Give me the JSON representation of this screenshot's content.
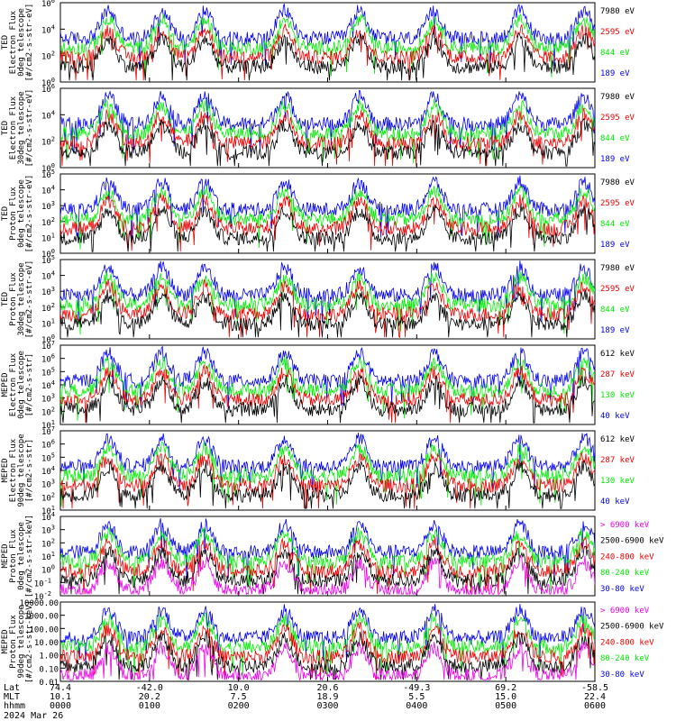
{
  "colors": {
    "black": "#000000",
    "red": "#ee0000",
    "green": "#00ee00",
    "blue": "#0000ee",
    "magenta": "#ee00ee"
  },
  "chart_data": [
    {
      "type": "line",
      "ylabel": [
        "TED",
        "Electron Flux",
        "0deg telescope",
        "[#/cm2-s-str-eV]"
      ],
      "ylim": [
        1,
        1000000
      ],
      "scale": "log",
      "yticks": [
        "10^0",
        "10^2",
        "10^4",
        "10^6"
      ],
      "series": [
        {
          "name": "7980 eV",
          "color": "black"
        },
        {
          "name": "2595 eV",
          "color": "red"
        },
        {
          "name": "844 eV",
          "color": "green"
        },
        {
          "name": "189 eV",
          "color": "blue"
        }
      ]
    },
    {
      "type": "line",
      "ylabel": [
        "TED",
        "Electron Flux",
        "30deg telescope",
        "[#/cm2-s-str-eV]"
      ],
      "ylim": [
        1,
        1000000
      ],
      "scale": "log",
      "yticks": [
        "10^0",
        "10^2",
        "10^4",
        "10^6"
      ],
      "series": [
        {
          "name": "7980 eV",
          "color": "black"
        },
        {
          "name": "2595 eV",
          "color": "red"
        },
        {
          "name": "844 eV",
          "color": "green"
        },
        {
          "name": "189 eV",
          "color": "blue"
        }
      ]
    },
    {
      "type": "line",
      "ylabel": [
        "TED",
        "Proton Flux",
        "0deg telescope",
        "[#/cm2-s-str-eV]"
      ],
      "ylim": [
        1,
        100000
      ],
      "scale": "log",
      "yticks": [
        "10^0",
        "10^1",
        "10^2",
        "10^3",
        "10^4",
        "10^5"
      ],
      "series": [
        {
          "name": "7980 eV",
          "color": "black"
        },
        {
          "name": "2595 eV",
          "color": "red"
        },
        {
          "name": "844 eV",
          "color": "green"
        },
        {
          "name": "189 eV",
          "color": "blue"
        }
      ]
    },
    {
      "type": "line",
      "ylabel": [
        "TED",
        "Proton Flux",
        "30deg telescope",
        "[#/cm2-s-str-eV]"
      ],
      "ylim": [
        1,
        100000
      ],
      "scale": "log",
      "yticks": [
        "10^0",
        "10^1",
        "10^2",
        "10^3",
        "10^4",
        "10^5"
      ],
      "series": [
        {
          "name": "7980 eV",
          "color": "black"
        },
        {
          "name": "2595 eV",
          "color": "red"
        },
        {
          "name": "844 eV",
          "color": "green"
        },
        {
          "name": "189 eV",
          "color": "blue"
        }
      ]
    },
    {
      "type": "line",
      "ylabel": [
        "MEPED",
        "Electron Flux",
        "0deg telescope",
        "[#/cm2-s-str]"
      ],
      "ylim": [
        10,
        10000000
      ],
      "scale": "log",
      "yticks": [
        "10^1",
        "10^2",
        "10^3",
        "10^4",
        "10^5",
        "10^6",
        "10^7"
      ],
      "series": [
        {
          "name": "612 keV",
          "color": "black"
        },
        {
          "name": "287 keV",
          "color": "red"
        },
        {
          "name": "130 keV",
          "color": "green"
        },
        {
          "name": "40 keV",
          "color": "blue"
        }
      ]
    },
    {
      "type": "line",
      "ylabel": [
        "MEPED",
        "Electron Flux",
        "90deg telescope",
        "[#/cm2-s-str]"
      ],
      "ylim": [
        10,
        10000000
      ],
      "scale": "log",
      "yticks": [
        "10^1",
        "10^2",
        "10^3",
        "10^4",
        "10^5",
        "10^6",
        "10^7"
      ],
      "series": [
        {
          "name": "612 keV",
          "color": "black"
        },
        {
          "name": "287 keV",
          "color": "red"
        },
        {
          "name": "130 keV",
          "color": "green"
        },
        {
          "name": "40 keV",
          "color": "blue"
        }
      ]
    },
    {
      "type": "line",
      "ylabel": [
        "MEPED",
        "Proton Flux",
        "0deg telescope",
        "[#/cm2-s-str-keV]"
      ],
      "ylim": [
        0.01,
        10000
      ],
      "scale": "log",
      "yticks": [
        "10^-2",
        "10^-1",
        "10^0",
        "10^1",
        "10^2",
        "10^3",
        "10^4"
      ],
      "series": [
        {
          "name": "> 6900 keV",
          "color": "magenta"
        },
        {
          "name": "2500-6900 keV",
          "color": "black"
        },
        {
          "name": "240-800 keV",
          "color": "red"
        },
        {
          "name": "80-240 keV",
          "color": "green"
        },
        {
          "name": "30-80 keV",
          "color": "blue"
        }
      ]
    },
    {
      "type": "line",
      "ylabel": [
        "MEPED",
        "Proton Flux",
        "90deg telescope",
        "[#/cm2-s-str-keV]"
      ],
      "ylim": [
        0.01,
        10000
      ],
      "scale": "log",
      "yticks": [
        "0.01",
        "0.10",
        "1.00",
        "10.00",
        "100.00",
        "1000.00",
        "10000.00"
      ],
      "series": [
        {
          "name": "> 6900 keV",
          "color": "magenta"
        },
        {
          "name": "2500-6900 keV",
          "color": "black"
        },
        {
          "name": "240-800 keV",
          "color": "red"
        },
        {
          "name": "80-240 keV",
          "color": "green"
        },
        {
          "name": "30-80 keV",
          "color": "blue"
        }
      ]
    }
  ],
  "xaxis": {
    "row_labels": [
      "Lat",
      "MLT",
      "hhmm"
    ],
    "ticks": [
      {
        "lat": "74.4",
        "mlt": "10.1",
        "hhmm": "0000"
      },
      {
        "lat": "-42.0",
        "mlt": "20.2",
        "hhmm": "0100"
      },
      {
        "lat": "10.0",
        "mlt": "7.5",
        "hhmm": "0200"
      },
      {
        "lat": "20.6",
        "mlt": "18.9",
        "hhmm": "0300"
      },
      {
        "lat": "-49.3",
        "mlt": "5.5",
        "hhmm": "0400"
      },
      {
        "lat": "69.2",
        "mlt": "15.0",
        "hhmm": "0500"
      },
      {
        "lat": "-58.5",
        "mlt": "22.4",
        "hhmm": "0600"
      }
    ],
    "date": "2024 Mar 26"
  }
}
